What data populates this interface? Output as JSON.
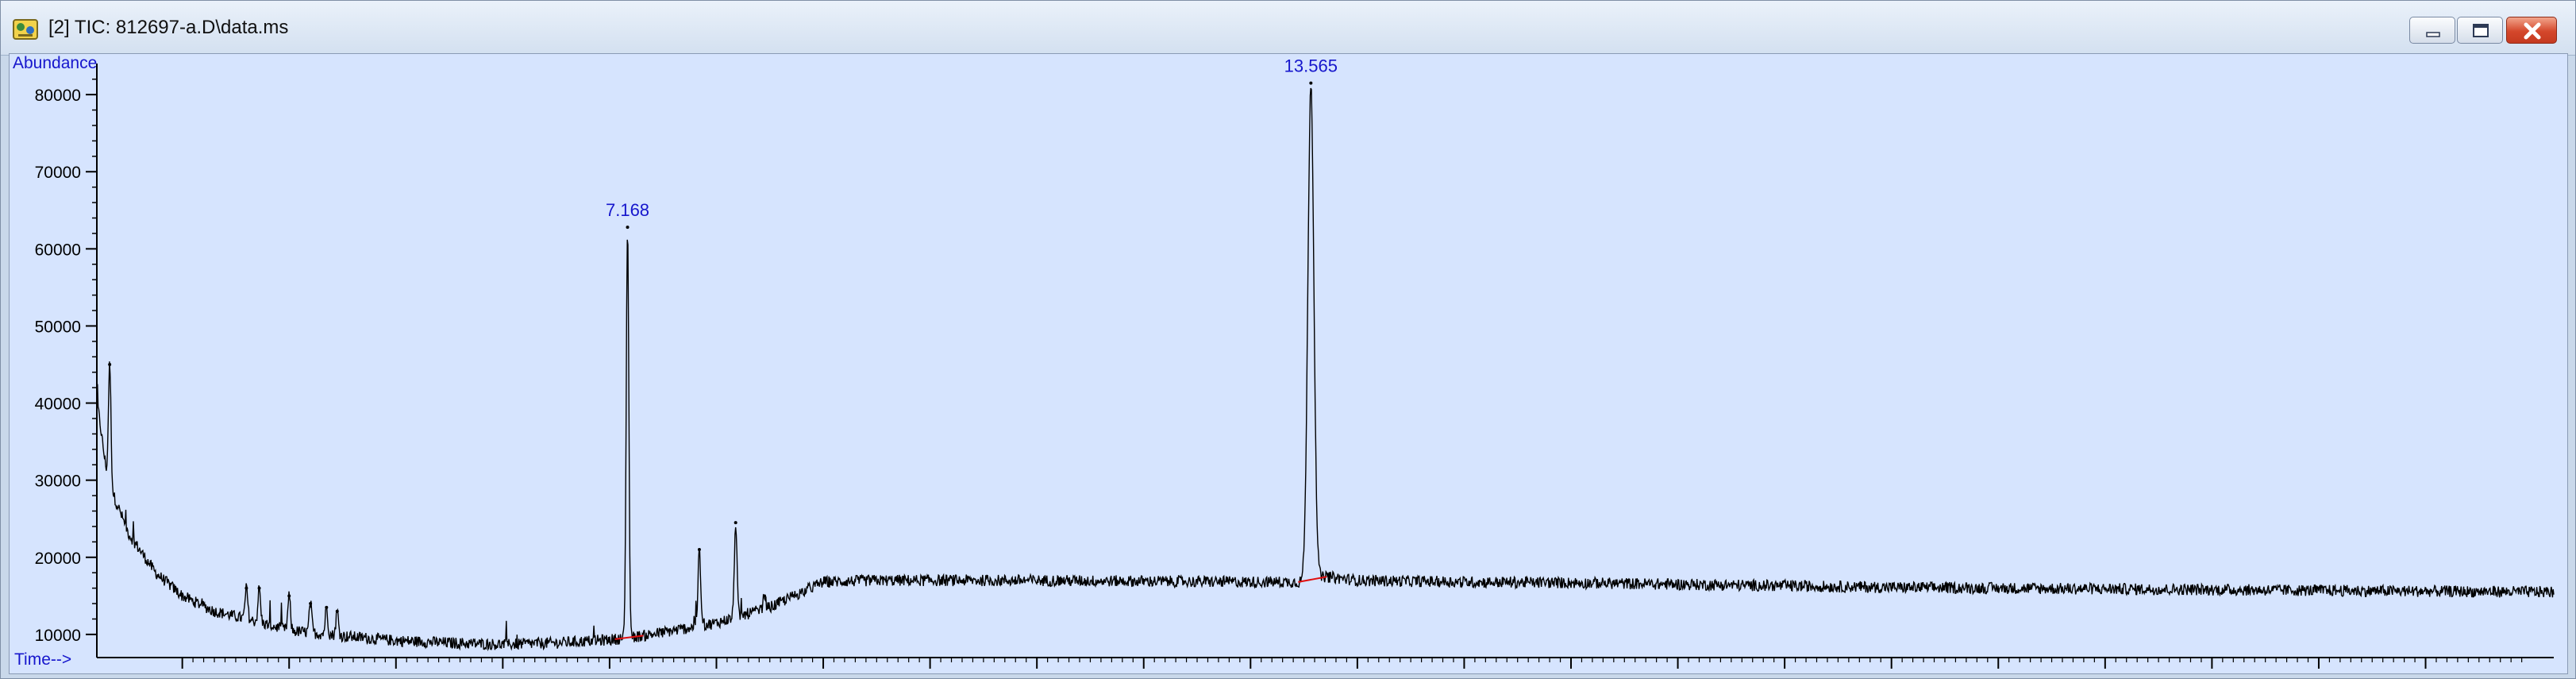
{
  "window": {
    "title": "[2] TIC: 812697-a.D\\data.ms",
    "buttons": [
      "minimize",
      "restore",
      "close"
    ]
  },
  "colors": {
    "plot_bg": "#d6e4fe",
    "trace": "#000000",
    "label": "#1616cc",
    "baseline_marker": "#e01010"
  },
  "chart_data": {
    "type": "line",
    "title": "[2] TIC: 812697-a.D\\data.ms",
    "xlabel": "Time-->",
    "ylabel": "Abundance",
    "xlim": [
      2.2,
      25.2
    ],
    "ylim": [
      7000,
      83000
    ],
    "x_ticks": [
      "3.00",
      "4.00",
      "5.00",
      "6.00",
      "7.00",
      "8.00",
      "9.00",
      "10.00",
      "11.00",
      "12.00",
      "13.00",
      "14.00",
      "15.00",
      "16.00",
      "17.00",
      "18.00",
      "19.00",
      "20.00",
      "21.00",
      "22.00",
      "23.00",
      "24.00"
    ],
    "y_ticks": [
      "10000",
      "20000",
      "30000",
      "40000",
      "50000",
      "60000",
      "70000",
      "80000"
    ],
    "series": [
      {
        "name": "TIC",
        "x": [
          2.2,
          2.3,
          2.5,
          2.75,
          3.0,
          3.3,
          3.6,
          4.0,
          4.5,
          5.0,
          5.5,
          6.0,
          6.5,
          7.0,
          7.3,
          7.6,
          8.0,
          8.5,
          8.8,
          9.0,
          9.5,
          10.0,
          11.0,
          12.0,
          13.0,
          13.5,
          13.7,
          14.0,
          15.0,
          16.0,
          17.0,
          18.0,
          19.0,
          20.0,
          21.0,
          22.0,
          23.0,
          24.0,
          25.2
        ],
        "y": [
          40500,
          30000,
          23000,
          18000,
          15000,
          13000,
          12000,
          10500,
          9800,
          9200,
          8900,
          8700,
          8900,
          9300,
          9800,
          10500,
          11500,
          13500,
          15500,
          16800,
          17000,
          17000,
          17000,
          16900,
          16800,
          16800,
          17500,
          17000,
          16800,
          16700,
          16500,
          16300,
          16100,
          16000,
          15900,
          15800,
          15700,
          15600,
          15500
        ]
      }
    ],
    "peaks": [
      {
        "x": 2.32,
        "y": 45000
      },
      {
        "x": 3.6,
        "y": 16000
      },
      {
        "x": 3.72,
        "y": 16000
      },
      {
        "x": 4.0,
        "y": 15000
      },
      {
        "x": 4.2,
        "y": 14000
      },
      {
        "x": 4.35,
        "y": 13500
      },
      {
        "x": 4.45,
        "y": 13000
      },
      {
        "x": 7.168,
        "y": 62800,
        "label": "7.168"
      },
      {
        "x": 7.84,
        "y": 21000
      },
      {
        "x": 8.18,
        "y": 24500
      },
      {
        "x": 8.45,
        "y": 15000
      },
      {
        "x": 13.565,
        "y": 81500,
        "label": "13.565"
      }
    ],
    "annotations": [
      "7.168",
      "13.565"
    ]
  }
}
